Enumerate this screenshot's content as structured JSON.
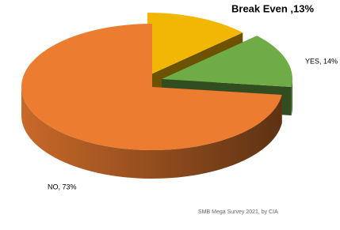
{
  "chart_data": {
    "type": "pie3d",
    "values": [
      13,
      14,
      73
    ],
    "value_labels": [
      "Break Even ,13%",
      "YES, 14%",
      "NO, 73%"
    ],
    "colors": [
      "#f2b705",
      "#6fac46",
      "#ec7c30"
    ],
    "caption": "SMB Mega Survey 2021, by CIA"
  }
}
